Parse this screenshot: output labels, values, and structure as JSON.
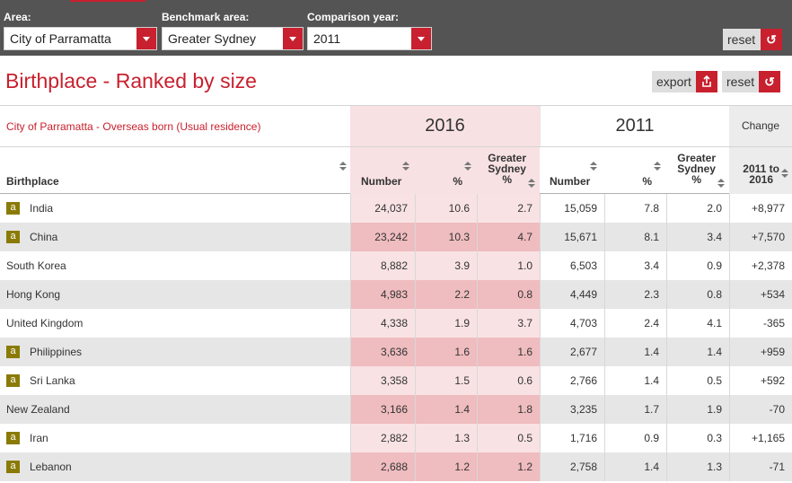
{
  "filters": {
    "area": {
      "label": "Area:",
      "value": "City of Parramatta"
    },
    "benchmark": {
      "label": "Benchmark area:",
      "value": "Greater Sydney"
    },
    "year": {
      "label": "Comparison year:",
      "value": "2011"
    },
    "reset_label": "reset"
  },
  "page": {
    "title": "Birthplace - Ranked by size",
    "export_label": "export",
    "reset_label": "reset",
    "export_icon": "export-icon",
    "reset_icon": "reset-icon"
  },
  "table": {
    "subtitle": "City of Parramatta - Overseas born (Usual residence)",
    "year_a": "2016",
    "year_b": "2011",
    "change_label": "Change",
    "columns": {
      "birthplace": "Birthplace",
      "number": "Number",
      "pct": "%",
      "greater_sydney_line1": "Greater",
      "greater_sydney_line2": "Sydney",
      "greater_sydney_line3": "%",
      "change_line1": "2011 to",
      "change_line2": "2016"
    },
    "badge_label": "a",
    "rows": [
      {
        "name": "India",
        "badge": true,
        "n16": "24,037",
        "p16": "10.6",
        "g16": "2.7",
        "n11": "15,059",
        "p11": "7.8",
        "g11": "2.0",
        "chg": "+8,977"
      },
      {
        "name": "China",
        "badge": true,
        "n16": "23,242",
        "p16": "10.3",
        "g16": "4.7",
        "n11": "15,671",
        "p11": "8.1",
        "g11": "3.4",
        "chg": "+7,570"
      },
      {
        "name": "South Korea",
        "badge": false,
        "n16": "8,882",
        "p16": "3.9",
        "g16": "1.0",
        "n11": "6,503",
        "p11": "3.4",
        "g11": "0.9",
        "chg": "+2,378"
      },
      {
        "name": "Hong Kong",
        "badge": false,
        "n16": "4,983",
        "p16": "2.2",
        "g16": "0.8",
        "n11": "4,449",
        "p11": "2.3",
        "g11": "0.8",
        "chg": "+534"
      },
      {
        "name": "United Kingdom",
        "badge": false,
        "n16": "4,338",
        "p16": "1.9",
        "g16": "3.7",
        "n11": "4,703",
        "p11": "2.4",
        "g11": "4.1",
        "chg": "-365"
      },
      {
        "name": "Philippines",
        "badge": true,
        "n16": "3,636",
        "p16": "1.6",
        "g16": "1.6",
        "n11": "2,677",
        "p11": "1.4",
        "g11": "1.4",
        "chg": "+959"
      },
      {
        "name": "Sri Lanka",
        "badge": true,
        "n16": "3,358",
        "p16": "1.5",
        "g16": "0.6",
        "n11": "2,766",
        "p11": "1.4",
        "g11": "0.5",
        "chg": "+592"
      },
      {
        "name": "New Zealand",
        "badge": false,
        "n16": "3,166",
        "p16": "1.4",
        "g16": "1.8",
        "n11": "3,235",
        "p11": "1.7",
        "g11": "1.9",
        "chg": "-70"
      },
      {
        "name": "Iran",
        "badge": true,
        "n16": "2,882",
        "p16": "1.3",
        "g16": "0.5",
        "n11": "1,716",
        "p11": "0.9",
        "g11": "0.3",
        "chg": "+1,165"
      },
      {
        "name": "Lebanon",
        "badge": true,
        "n16": "2,688",
        "p16": "1.2",
        "g16": "1.2",
        "n11": "2,758",
        "p11": "1.4",
        "g11": "1.3",
        "chg": "-71"
      }
    ]
  },
  "colors": {
    "accent": "#c8202e",
    "topbar": "#545454",
    "shade_2016_light": "#f9e2e4",
    "shade_2016_dark": "#efbcbf",
    "badge": "#8a7b08"
  }
}
